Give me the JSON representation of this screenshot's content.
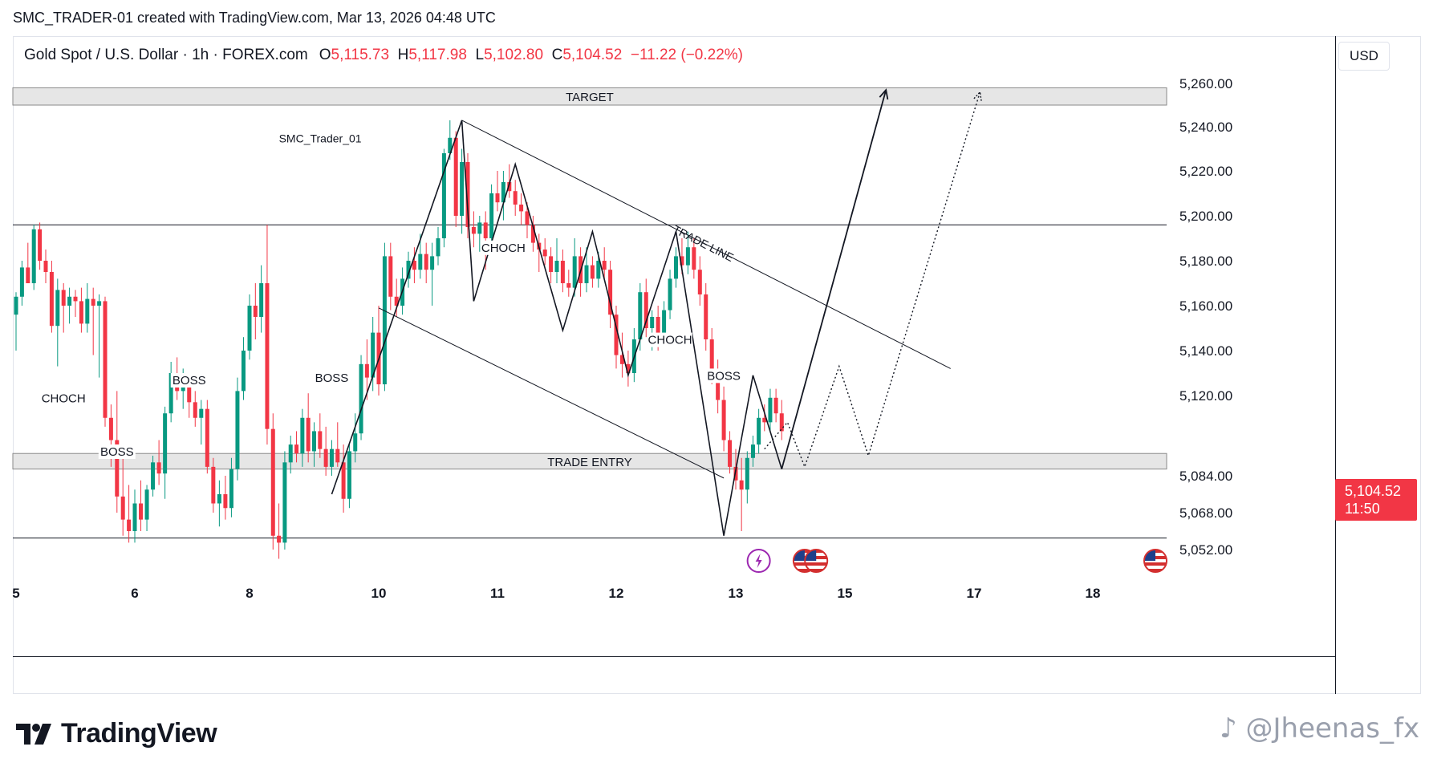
{
  "header": {
    "caption": "SMC_TRADER-01 created with TradingView.com, Mar 13, 2026 04:48 UTC"
  },
  "legend": {
    "symbol": "Gold Spot / U.S. Dollar · 1h · FOREX.com",
    "o_label": "O",
    "o_value": "5,115.73",
    "h_label": "H",
    "h_value": "5,117.98",
    "l_label": "L",
    "l_value": "5,102.80",
    "c_label": "C",
    "c_value": "5,104.52",
    "change": "−11.22 (−0.22%)"
  },
  "currency": "USD",
  "last_price": {
    "price": "5,104.52",
    "countdown": "11:50"
  },
  "footer": {
    "brand": "TradingView",
    "watermark": "@Jheenas_fx"
  },
  "colors": {
    "up": "#089981",
    "down": "#f23645",
    "zone_fill": "#e6e6e6",
    "zone_stroke": "#8a8a8a",
    "drawing": "#131722",
    "event_purple": "#9c27b0"
  },
  "chart_data": {
    "type": "candlestick",
    "symbol": "XAUUSD",
    "timeframe": "1h",
    "ylim": [
      5040,
      5270
    ],
    "y_ticks": [
      "5,260.00",
      "5,240.00",
      "5,220.00",
      "5,200.00",
      "5,180.00",
      "5,160.00",
      "5,140.00",
      "5,120.00",
      "5,084.00",
      "5,068.00",
      "5,052.00"
    ],
    "y_tick_values": [
      5260,
      5240,
      5220,
      5200,
      5180,
      5160,
      5140,
      5120,
      5084,
      5068,
      5052
    ],
    "x_ticks": [
      "5",
      "6",
      "8",
      "10",
      "11",
      "12",
      "13",
      "15",
      "17",
      "18"
    ],
    "x_tick_bars": [
      0,
      20,
      39,
      61,
      81,
      101,
      121,
      140,
      162,
      182
    ],
    "candles": [
      {
        "i": 0,
        "o": 5156,
        "h": 5166,
        "l": 5140,
        "c": 5164
      },
      {
        "i": 1,
        "o": 5164,
        "h": 5180,
        "l": 5160,
        "c": 5177
      },
      {
        "i": 2,
        "o": 5177,
        "h": 5188,
        "l": 5172,
        "c": 5170
      },
      {
        "i": 3,
        "o": 5170,
        "h": 5196,
        "l": 5167,
        "c": 5194
      },
      {
        "i": 4,
        "o": 5194,
        "h": 5197,
        "l": 5176,
        "c": 5180
      },
      {
        "i": 5,
        "o": 5180,
        "h": 5185,
        "l": 5170,
        "c": 5175
      },
      {
        "i": 6,
        "o": 5175,
        "h": 5180,
        "l": 5148,
        "c": 5151
      },
      {
        "i": 7,
        "o": 5151,
        "h": 5172,
        "l": 5133,
        "c": 5167
      },
      {
        "i": 8,
        "o": 5167,
        "h": 5170,
        "l": 5148,
        "c": 5160
      },
      {
        "i": 9,
        "o": 5160,
        "h": 5168,
        "l": 5152,
        "c": 5164
      },
      {
        "i": 10,
        "o": 5164,
        "h": 5167,
        "l": 5155,
        "c": 5162
      },
      {
        "i": 11,
        "o": 5162,
        "h": 5168,
        "l": 5148,
        "c": 5152
      },
      {
        "i": 12,
        "o": 5152,
        "h": 5170,
        "l": 5148,
        "c": 5163
      },
      {
        "i": 13,
        "o": 5163,
        "h": 5168,
        "l": 5138,
        "c": 5160
      },
      {
        "i": 14,
        "o": 5160,
        "h": 5165,
        "l": 5128,
        "c": 5162
      },
      {
        "i": 15,
        "o": 5162,
        "h": 5164,
        "l": 5106,
        "c": 5110
      },
      {
        "i": 16,
        "o": 5110,
        "h": 5116,
        "l": 5088,
        "c": 5100
      },
      {
        "i": 17,
        "o": 5100,
        "h": 5122,
        "l": 5068,
        "c": 5075
      },
      {
        "i": 18,
        "o": 5075,
        "h": 5092,
        "l": 5058,
        "c": 5065
      },
      {
        "i": 19,
        "o": 5065,
        "h": 5080,
        "l": 5055,
        "c": 5060
      },
      {
        "i": 20,
        "o": 5060,
        "h": 5078,
        "l": 5055,
        "c": 5072
      },
      {
        "i": 21,
        "o": 5072,
        "h": 5082,
        "l": 5060,
        "c": 5065
      },
      {
        "i": 22,
        "o": 5065,
        "h": 5080,
        "l": 5060,
        "c": 5078
      },
      {
        "i": 23,
        "o": 5078,
        "h": 5093,
        "l": 5075,
        "c": 5090
      },
      {
        "i": 24,
        "o": 5090,
        "h": 5100,
        "l": 5080,
        "c": 5085
      },
      {
        "i": 25,
        "o": 5085,
        "h": 5115,
        "l": 5074,
        "c": 5112
      },
      {
        "i": 26,
        "o": 5112,
        "h": 5135,
        "l": 5108,
        "c": 5130
      },
      {
        "i": 27,
        "o": 5130,
        "h": 5137,
        "l": 5118,
        "c": 5122
      },
      {
        "i": 28,
        "o": 5122,
        "h": 5132,
        "l": 5114,
        "c": 5127
      },
      {
        "i": 29,
        "o": 5127,
        "h": 5130,
        "l": 5110,
        "c": 5117
      },
      {
        "i": 30,
        "o": 5117,
        "h": 5122,
        "l": 5106,
        "c": 5110
      },
      {
        "i": 31,
        "o": 5110,
        "h": 5118,
        "l": 5098,
        "c": 5114
      },
      {
        "i": 32,
        "o": 5114,
        "h": 5118,
        "l": 5085,
        "c": 5088
      },
      {
        "i": 33,
        "o": 5088,
        "h": 5092,
        "l": 5068,
        "c": 5072
      },
      {
        "i": 34,
        "o": 5072,
        "h": 5082,
        "l": 5062,
        "c": 5076
      },
      {
        "i": 35,
        "o": 5076,
        "h": 5084,
        "l": 5065,
        "c": 5070
      },
      {
        "i": 36,
        "o": 5070,
        "h": 5092,
        "l": 5066,
        "c": 5087
      },
      {
        "i": 37,
        "o": 5087,
        "h": 5128,
        "l": 5082,
        "c": 5122
      },
      {
        "i": 38,
        "o": 5122,
        "h": 5146,
        "l": 5118,
        "c": 5140
      },
      {
        "i": 39,
        "o": 5140,
        "h": 5165,
        "l": 5136,
        "c": 5160
      },
      {
        "i": 40,
        "o": 5160,
        "h": 5170,
        "l": 5145,
        "c": 5155
      },
      {
        "i": 41,
        "o": 5155,
        "h": 5178,
        "l": 5148,
        "c": 5170
      },
      {
        "i": 42,
        "o": 5170,
        "h": 5196,
        "l": 5098,
        "c": 5105
      },
      {
        "i": 43,
        "o": 5105,
        "h": 5112,
        "l": 5052,
        "c": 5058
      },
      {
        "i": 44,
        "o": 5058,
        "h": 5072,
        "l": 5048,
        "c": 5055
      },
      {
        "i": 45,
        "o": 5055,
        "h": 5095,
        "l": 5052,
        "c": 5090
      },
      {
        "i": 46,
        "o": 5090,
        "h": 5102,
        "l": 5085,
        "c": 5098
      },
      {
        "i": 47,
        "o": 5098,
        "h": 5104,
        "l": 5090,
        "c": 5094
      },
      {
        "i": 48,
        "o": 5094,
        "h": 5114,
        "l": 5088,
        "c": 5110
      },
      {
        "i": 49,
        "o": 5110,
        "h": 5121,
        "l": 5090,
        "c": 5095
      },
      {
        "i": 50,
        "o": 5095,
        "h": 5108,
        "l": 5088,
        "c": 5104
      },
      {
        "i": 51,
        "o": 5104,
        "h": 5112,
        "l": 5092,
        "c": 5096
      },
      {
        "i": 52,
        "o": 5096,
        "h": 5106,
        "l": 5084,
        "c": 5088
      },
      {
        "i": 53,
        "o": 5088,
        "h": 5100,
        "l": 5084,
        "c": 5096
      },
      {
        "i": 54,
        "o": 5096,
        "h": 5108,
        "l": 5088,
        "c": 5090
      },
      {
        "i": 55,
        "o": 5090,
        "h": 5098,
        "l": 5068,
        "c": 5074
      },
      {
        "i": 56,
        "o": 5074,
        "h": 5098,
        "l": 5070,
        "c": 5095
      },
      {
        "i": 57,
        "o": 5095,
        "h": 5112,
        "l": 5090,
        "c": 5103
      },
      {
        "i": 58,
        "o": 5103,
        "h": 5138,
        "l": 5100,
        "c": 5134
      },
      {
        "i": 59,
        "o": 5134,
        "h": 5145,
        "l": 5118,
        "c": 5128
      },
      {
        "i": 60,
        "o": 5128,
        "h": 5155,
        "l": 5122,
        "c": 5148
      },
      {
        "i": 61,
        "o": 5148,
        "h": 5160,
        "l": 5120,
        "c": 5125
      },
      {
        "i": 62,
        "o": 5125,
        "h": 5188,
        "l": 5122,
        "c": 5182
      },
      {
        "i": 63,
        "o": 5182,
        "h": 5188,
        "l": 5158,
        "c": 5164
      },
      {
        "i": 64,
        "o": 5164,
        "h": 5172,
        "l": 5155,
        "c": 5160
      },
      {
        "i": 65,
        "o": 5160,
        "h": 5177,
        "l": 5156,
        "c": 5172
      },
      {
        "i": 66,
        "o": 5172,
        "h": 5184,
        "l": 5168,
        "c": 5180
      },
      {
        "i": 67,
        "o": 5180,
        "h": 5186,
        "l": 5170,
        "c": 5176
      },
      {
        "i": 68,
        "o": 5176,
        "h": 5192,
        "l": 5172,
        "c": 5183
      },
      {
        "i": 69,
        "o": 5183,
        "h": 5188,
        "l": 5170,
        "c": 5176
      },
      {
        "i": 70,
        "o": 5176,
        "h": 5188,
        "l": 5160,
        "c": 5182
      },
      {
        "i": 71,
        "o": 5182,
        "h": 5195,
        "l": 5178,
        "c": 5190
      },
      {
        "i": 72,
        "o": 5190,
        "h": 5230,
        "l": 5186,
        "c": 5228
      },
      {
        "i": 73,
        "o": 5228,
        "h": 5243,
        "l": 5225,
        "c": 5235
      },
      {
        "i": 74,
        "o": 5235,
        "h": 5238,
        "l": 5195,
        "c": 5200
      },
      {
        "i": 75,
        "o": 5200,
        "h": 5230,
        "l": 5192,
        "c": 5224
      },
      {
        "i": 76,
        "o": 5224,
        "h": 5228,
        "l": 5190,
        "c": 5195
      },
      {
        "i": 77,
        "o": 5195,
        "h": 5202,
        "l": 5186,
        "c": 5192
      },
      {
        "i": 78,
        "o": 5192,
        "h": 5200,
        "l": 5184,
        "c": 5197
      },
      {
        "i": 79,
        "o": 5197,
        "h": 5202,
        "l": 5176,
        "c": 5190
      },
      {
        "i": 80,
        "o": 5190,
        "h": 5214,
        "l": 5186,
        "c": 5210
      },
      {
        "i": 81,
        "o": 5210,
        "h": 5220,
        "l": 5202,
        "c": 5206
      },
      {
        "i": 82,
        "o": 5206,
        "h": 5220,
        "l": 5198,
        "c": 5215
      },
      {
        "i": 83,
        "o": 5215,
        "h": 5223,
        "l": 5208,
        "c": 5211
      },
      {
        "i": 84,
        "o": 5211,
        "h": 5216,
        "l": 5200,
        "c": 5205
      },
      {
        "i": 85,
        "o": 5205,
        "h": 5210,
        "l": 5196,
        "c": 5202
      },
      {
        "i": 86,
        "o": 5202,
        "h": 5206,
        "l": 5190,
        "c": 5196
      },
      {
        "i": 87,
        "o": 5196,
        "h": 5200,
        "l": 5184,
        "c": 5188
      },
      {
        "i": 88,
        "o": 5188,
        "h": 5192,
        "l": 5175,
        "c": 5185
      },
      {
        "i": 89,
        "o": 5185,
        "h": 5190,
        "l": 5178,
        "c": 5182
      },
      {
        "i": 90,
        "o": 5182,
        "h": 5186,
        "l": 5170,
        "c": 5175
      },
      {
        "i": 91,
        "o": 5175,
        "h": 5190,
        "l": 5170,
        "c": 5180
      },
      {
        "i": 92,
        "o": 5180,
        "h": 5185,
        "l": 5166,
        "c": 5170
      },
      {
        "i": 93,
        "o": 5170,
        "h": 5176,
        "l": 5164,
        "c": 5168
      },
      {
        "i": 94,
        "o": 5168,
        "h": 5190,
        "l": 5164,
        "c": 5182
      },
      {
        "i": 95,
        "o": 5182,
        "h": 5186,
        "l": 5164,
        "c": 5170
      },
      {
        "i": 96,
        "o": 5170,
        "h": 5186,
        "l": 5166,
        "c": 5178
      },
      {
        "i": 97,
        "o": 5178,
        "h": 5182,
        "l": 5168,
        "c": 5172
      },
      {
        "i": 98,
        "o": 5172,
        "h": 5184,
        "l": 5168,
        "c": 5180
      },
      {
        "i": 99,
        "o": 5180,
        "h": 5186,
        "l": 5172,
        "c": 5176
      },
      {
        "i": 100,
        "o": 5176,
        "h": 5180,
        "l": 5150,
        "c": 5156
      },
      {
        "i": 101,
        "o": 5156,
        "h": 5160,
        "l": 5132,
        "c": 5138
      },
      {
        "i": 102,
        "o": 5138,
        "h": 5148,
        "l": 5128,
        "c": 5134
      },
      {
        "i": 103,
        "o": 5134,
        "h": 5140,
        "l": 5124,
        "c": 5130
      },
      {
        "i": 104,
        "o": 5130,
        "h": 5150,
        "l": 5126,
        "c": 5145
      },
      {
        "i": 105,
        "o": 5145,
        "h": 5170,
        "l": 5140,
        "c": 5166
      },
      {
        "i": 106,
        "o": 5166,
        "h": 5172,
        "l": 5146,
        "c": 5150
      },
      {
        "i": 107,
        "o": 5150,
        "h": 5158,
        "l": 5140,
        "c": 5155
      },
      {
        "i": 108,
        "o": 5155,
        "h": 5160,
        "l": 5140,
        "c": 5146
      },
      {
        "i": 109,
        "o": 5146,
        "h": 5162,
        "l": 5142,
        "c": 5158
      },
      {
        "i": 110,
        "o": 5158,
        "h": 5176,
        "l": 5154,
        "c": 5172
      },
      {
        "i": 111,
        "o": 5172,
        "h": 5186,
        "l": 5168,
        "c": 5182
      },
      {
        "i": 112,
        "o": 5182,
        "h": 5190,
        "l": 5174,
        "c": 5178
      },
      {
        "i": 113,
        "o": 5178,
        "h": 5193,
        "l": 5174,
        "c": 5186
      },
      {
        "i": 114,
        "o": 5186,
        "h": 5190,
        "l": 5172,
        "c": 5176
      },
      {
        "i": 115,
        "o": 5176,
        "h": 5182,
        "l": 5160,
        "c": 5165
      },
      {
        "i": 116,
        "o": 5165,
        "h": 5170,
        "l": 5140,
        "c": 5145
      },
      {
        "i": 117,
        "o": 5145,
        "h": 5150,
        "l": 5125,
        "c": 5130
      },
      {
        "i": 118,
        "o": 5130,
        "h": 5136,
        "l": 5112,
        "c": 5118
      },
      {
        "i": 119,
        "o": 5118,
        "h": 5124,
        "l": 5095,
        "c": 5100
      },
      {
        "i": 120,
        "o": 5100,
        "h": 5104,
        "l": 5085,
        "c": 5088
      },
      {
        "i": 121,
        "o": 5088,
        "h": 5096,
        "l": 5078,
        "c": 5082
      },
      {
        "i": 122,
        "o": 5082,
        "h": 5092,
        "l": 5060,
        "c": 5078
      },
      {
        "i": 123,
        "o": 5078,
        "h": 5095,
        "l": 5072,
        "c": 5092
      },
      {
        "i": 124,
        "o": 5092,
        "h": 5102,
        "l": 5088,
        "c": 5098
      },
      {
        "i": 125,
        "o": 5098,
        "h": 5114,
        "l": 5094,
        "c": 5110
      },
      {
        "i": 126,
        "o": 5110,
        "h": 5116,
        "l": 5104,
        "c": 5108
      },
      {
        "i": 127,
        "o": 5108,
        "h": 5123,
        "l": 5104,
        "c": 5119
      },
      {
        "i": 128,
        "o": 5119,
        "h": 5123,
        "l": 5108,
        "c": 5112
      },
      {
        "i": 129,
        "o": 5112,
        "h": 5118,
        "l": 5100,
        "c": 5104
      }
    ],
    "zones": [
      {
        "label": "TARGET",
        "top": 5258,
        "bottom": 5250
      },
      {
        "label": "TRADE ENTRY",
        "top": 5094,
        "bottom": 5087
      }
    ],
    "horizontal_lines": [
      5196,
      5057
    ],
    "trendlines": [
      {
        "label": "TRADE LINE",
        "from": {
          "bar": 75,
          "price": 5243
        },
        "to": {
          "bar": 158,
          "price": 5132
        }
      },
      {
        "label": "",
        "from": {
          "bar": 61,
          "price": 5159
        },
        "to": {
          "bar": 119,
          "price": 5083
        }
      }
    ],
    "annotations": [
      {
        "text": "CHOCH",
        "bar": 8,
        "price": 5117
      },
      {
        "text": "BOSS",
        "bar": 17,
        "price": 5093
      },
      {
        "text": "BOSS",
        "bar": 29,
        "price": 5125
      },
      {
        "text": "BOSS",
        "bar": 53,
        "price": 5126
      },
      {
        "text": "CHOCH",
        "bar": 82,
        "price": 5184
      },
      {
        "text": "CHOCH",
        "bar": 110,
        "price": 5143
      },
      {
        "text": "BOSS",
        "bar": 119,
        "price": 5127
      },
      {
        "text": "SMC_Trader_01",
        "bar": 44,
        "price": 5233
      }
    ],
    "zigzag": [
      {
        "bar": 53,
        "price": 5076
      },
      {
        "bar": 75,
        "price": 5243
      },
      {
        "bar": 77,
        "price": 5162
      },
      {
        "bar": 84,
        "price": 5223
      },
      {
        "bar": 92,
        "price": 5149
      },
      {
        "bar": 97,
        "price": 5193
      },
      {
        "bar": 103,
        "price": 5129
      },
      {
        "bar": 111,
        "price": 5193
      },
      {
        "bar": 119,
        "price": 5058
      },
      {
        "bar": 124,
        "price": 5129
      },
      {
        "bar": 129,
        "price": 5087
      }
    ],
    "projection_solid": [
      {
        "bar": 129,
        "price": 5087
      },
      {
        "bar": 147,
        "price": 5257
      }
    ],
    "projection_dotted": [
      {
        "bar": 126,
        "price": 5096
      },
      {
        "bar": 130,
        "price": 5108
      },
      {
        "bar": 133,
        "price": 5088
      },
      {
        "bar": 139,
        "price": 5133
      },
      {
        "bar": 144,
        "price": 5093
      },
      {
        "bar": 163,
        "price": 5256
      }
    ],
    "events": [
      {
        "type": "lightning",
        "bar": 125
      },
      {
        "type": "us-flag",
        "bar": 133
      },
      {
        "type": "us-flag",
        "bar": 135
      },
      {
        "type": "us-flag",
        "bar": 191
      }
    ]
  }
}
